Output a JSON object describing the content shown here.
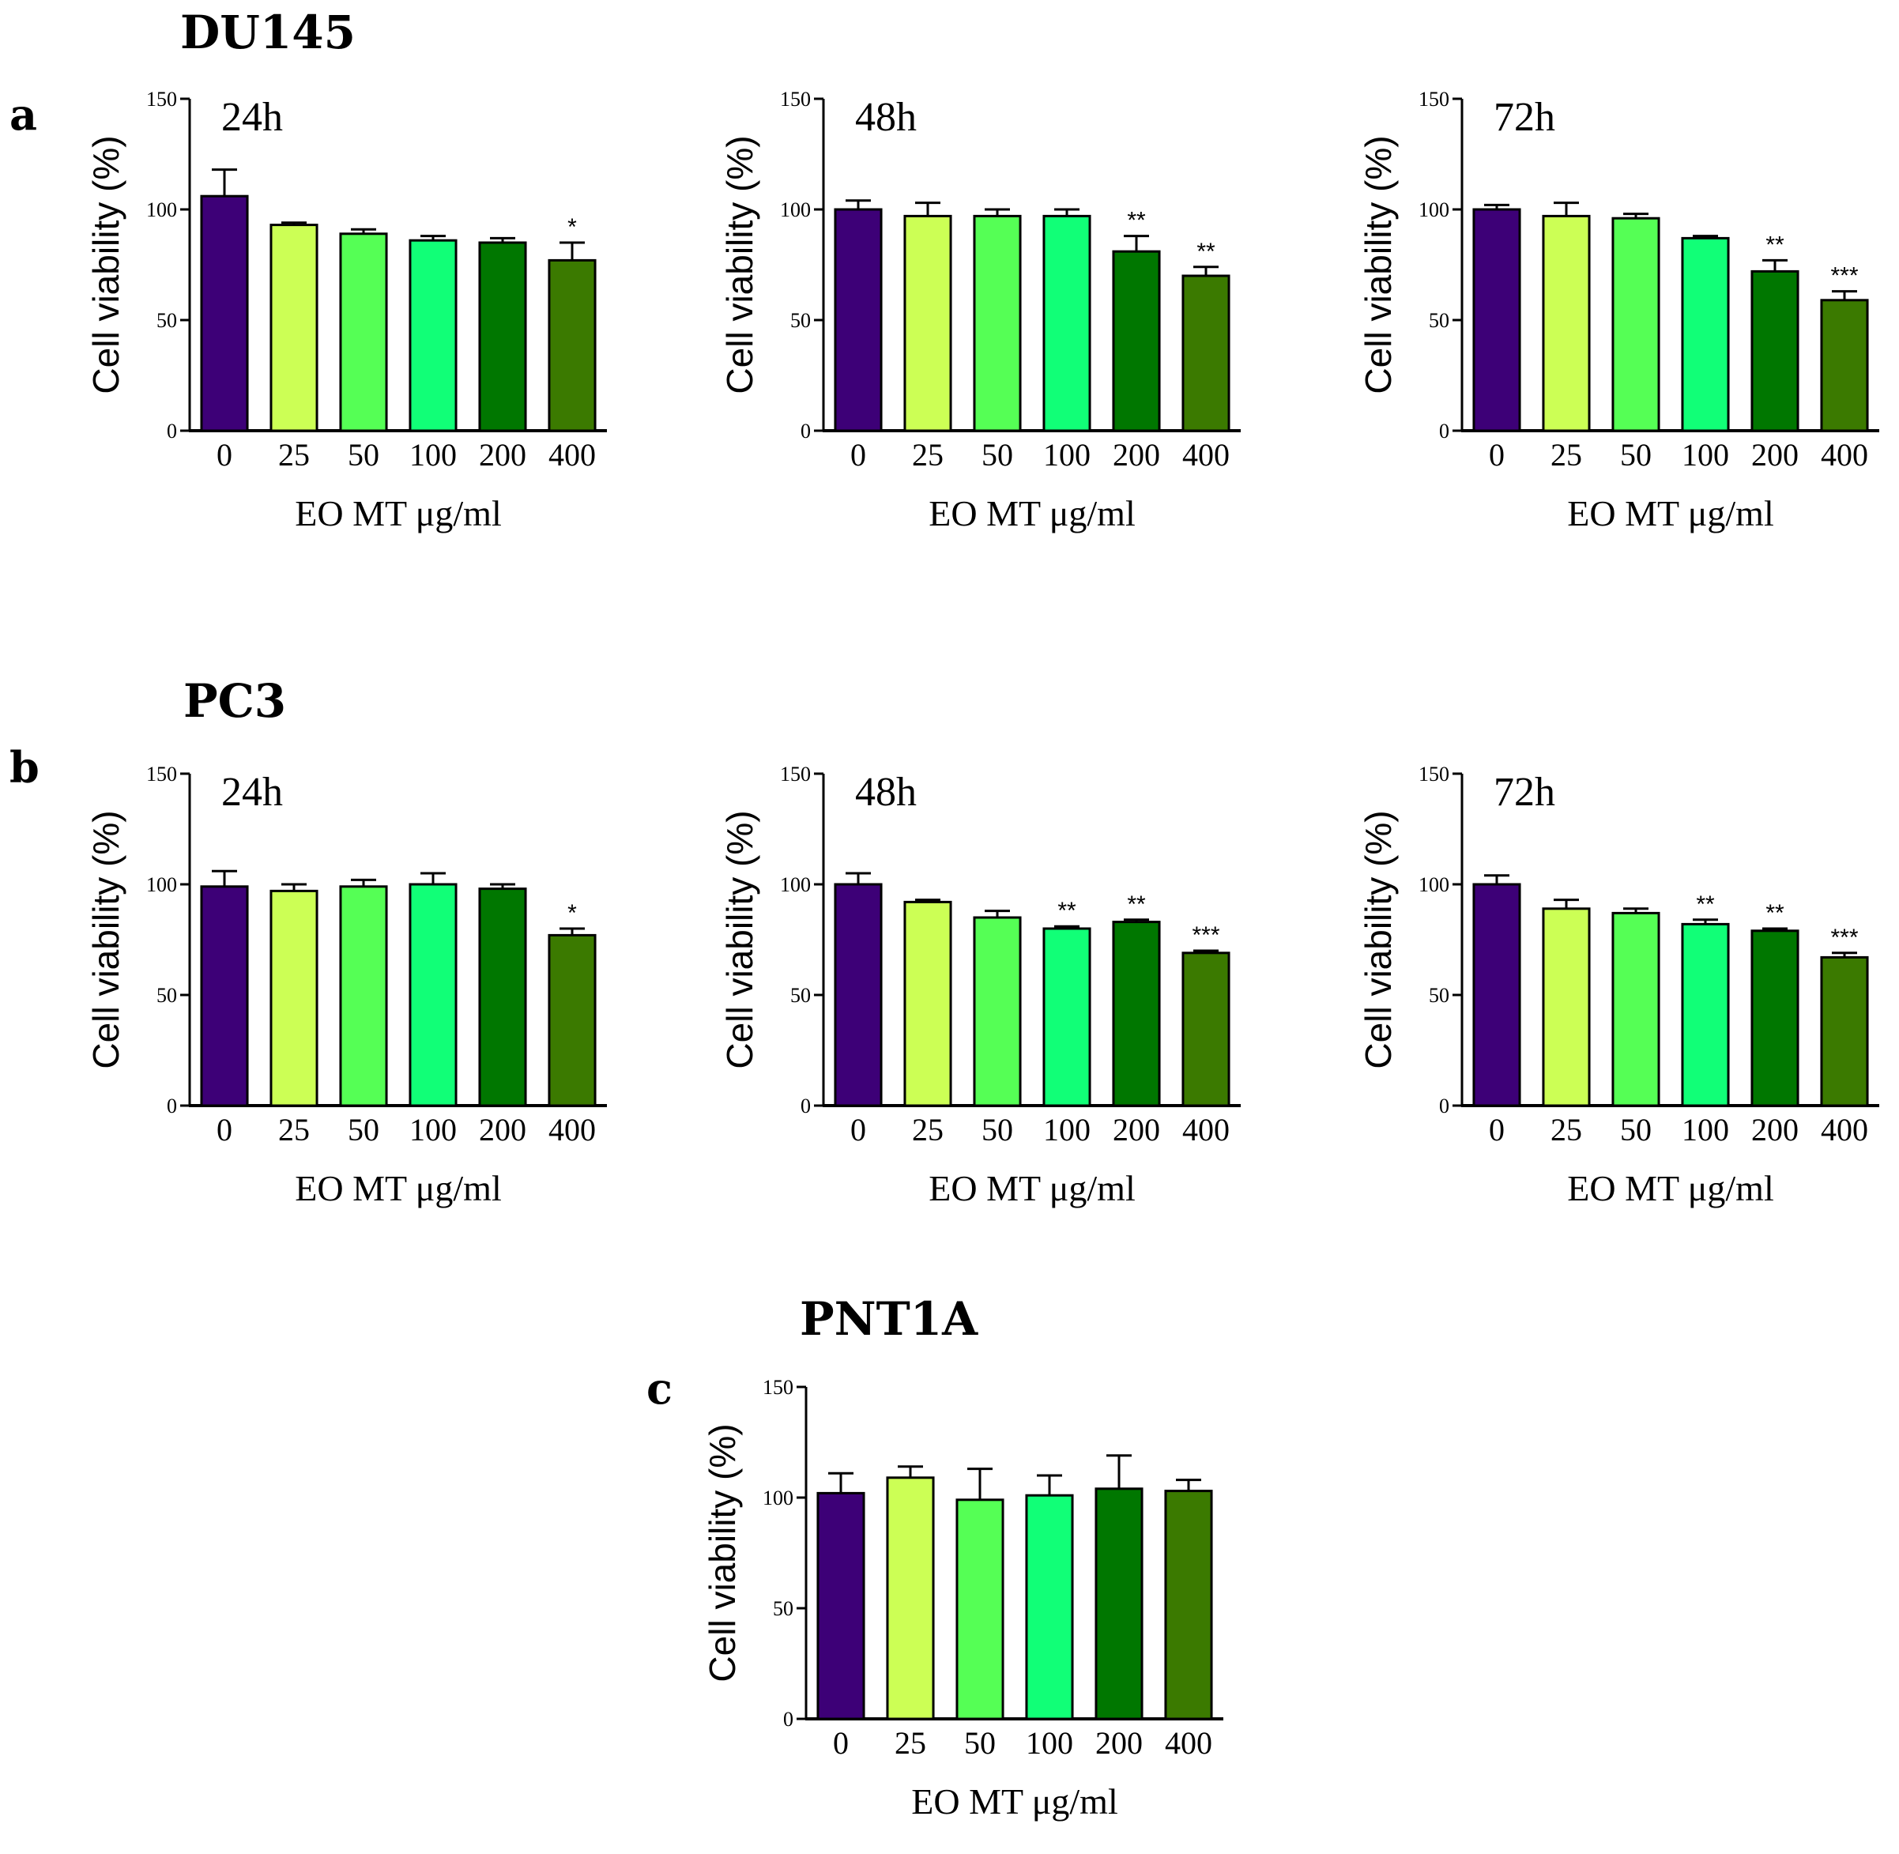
{
  "groups": [
    {
      "id": "du145",
      "title": "DU145",
      "letter": "a"
    },
    {
      "id": "pc3",
      "title": "PC3",
      "letter": "b"
    },
    {
      "id": "pnt1a",
      "title": "PNT1A",
      "letter": "c"
    }
  ],
  "colors": {
    "0": "#3d0077",
    "25": "#ccff55",
    "50": "#55ff55",
    "100": "#11ff77",
    "200": "#007700",
    "400": "#3b7a00",
    "axis": "#000000"
  },
  "chart_data": [
    {
      "group": "DU145",
      "time": "24h",
      "type": "bar",
      "categories": [
        "0",
        "25",
        "50",
        "100",
        "200",
        "400"
      ],
      "values": [
        106,
        93,
        89,
        86,
        85,
        77
      ],
      "errors": [
        12,
        1,
        2,
        2,
        2,
        8
      ],
      "significance": [
        "",
        "",
        "",
        "",
        "",
        "*"
      ],
      "ylabel": "Cell viability (%)",
      "xlabel": "EO  MT  μg/ml",
      "ylim": [
        0,
        150
      ],
      "yticks": [
        0,
        50,
        100,
        150
      ]
    },
    {
      "group": "DU145",
      "time": "48h",
      "type": "bar",
      "categories": [
        "0",
        "25",
        "50",
        "100",
        "200",
        "400"
      ],
      "values": [
        100,
        97,
        97,
        97,
        81,
        70
      ],
      "errors": [
        4,
        6,
        3,
        3,
        7,
        4
      ],
      "significance": [
        "",
        "",
        "",
        "",
        "**",
        "**"
      ],
      "ylabel": "Cell viability (%)",
      "xlabel": "EO  MT  μg/ml",
      "ylim": [
        0,
        150
      ],
      "yticks": [
        0,
        50,
        100,
        150
      ]
    },
    {
      "group": "DU145",
      "time": "72h",
      "type": "bar",
      "categories": [
        "0",
        "25",
        "50",
        "100",
        "200",
        "400"
      ],
      "values": [
        100,
        97,
        96,
        87,
        72,
        59
      ],
      "errors": [
        2,
        6,
        2,
        1,
        5,
        4
      ],
      "significance": [
        "",
        "",
        "",
        "",
        "**",
        "***"
      ],
      "ylabel": "Cell viability (%)",
      "xlabel": "EO  MT  μg/ml",
      "ylim": [
        0,
        150
      ],
      "yticks": [
        0,
        50,
        100,
        150
      ]
    },
    {
      "group": "PC3",
      "time": "24h",
      "type": "bar",
      "categories": [
        "0",
        "25",
        "50",
        "100",
        "200",
        "400"
      ],
      "values": [
        99,
        97,
        99,
        100,
        98,
        77
      ],
      "errors": [
        7,
        3,
        3,
        5,
        2,
        3
      ],
      "significance": [
        "",
        "",
        "",
        "",
        "",
        "*"
      ],
      "ylabel": "Cell viability (%)",
      "xlabel": "EO  MT  μg/ml",
      "ylim": [
        0,
        150
      ],
      "yticks": [
        0,
        50,
        100,
        150
      ]
    },
    {
      "group": "PC3",
      "time": "48h",
      "type": "bar",
      "categories": [
        "0",
        "25",
        "50",
        "100",
        "200",
        "400"
      ],
      "values": [
        100,
        92,
        85,
        80,
        83,
        69
      ],
      "errors": [
        5,
        1,
        3,
        1,
        1,
        1
      ],
      "significance": [
        "",
        "",
        "",
        "**",
        "**",
        "***"
      ],
      "ylabel": "Cell viability (%)",
      "xlabel": "EO  MT  μg/ml",
      "ylim": [
        0,
        150
      ],
      "yticks": [
        0,
        50,
        100,
        150
      ]
    },
    {
      "group": "PC3",
      "time": "72h",
      "type": "bar",
      "categories": [
        "0",
        "25",
        "50",
        "100",
        "200",
        "400"
      ],
      "values": [
        100,
        89,
        87,
        82,
        79,
        67
      ],
      "errors": [
        4,
        4,
        2,
        2,
        1,
        2
      ],
      "significance": [
        "",
        "",
        "",
        "**",
        "**",
        "***"
      ],
      "ylabel": "Cell viability (%)",
      "xlabel": "EO  MT  μg/ml",
      "ylim": [
        0,
        150
      ],
      "yticks": [
        0,
        50,
        100,
        150
      ]
    },
    {
      "group": "PNT1A",
      "time": "",
      "type": "bar",
      "categories": [
        "0",
        "25",
        "50",
        "100",
        "200",
        "400"
      ],
      "values": [
        102,
        109,
        99,
        101,
        104,
        103
      ],
      "errors": [
        9,
        5,
        14,
        9,
        15,
        5
      ],
      "significance": [
        "",
        "",
        "",
        "",
        "",
        ""
      ],
      "ylabel": "Cell viability (%)",
      "xlabel": "EO  MT  μg/ml",
      "ylim": [
        0,
        150
      ],
      "yticks": [
        0,
        50,
        100,
        150
      ]
    }
  ]
}
